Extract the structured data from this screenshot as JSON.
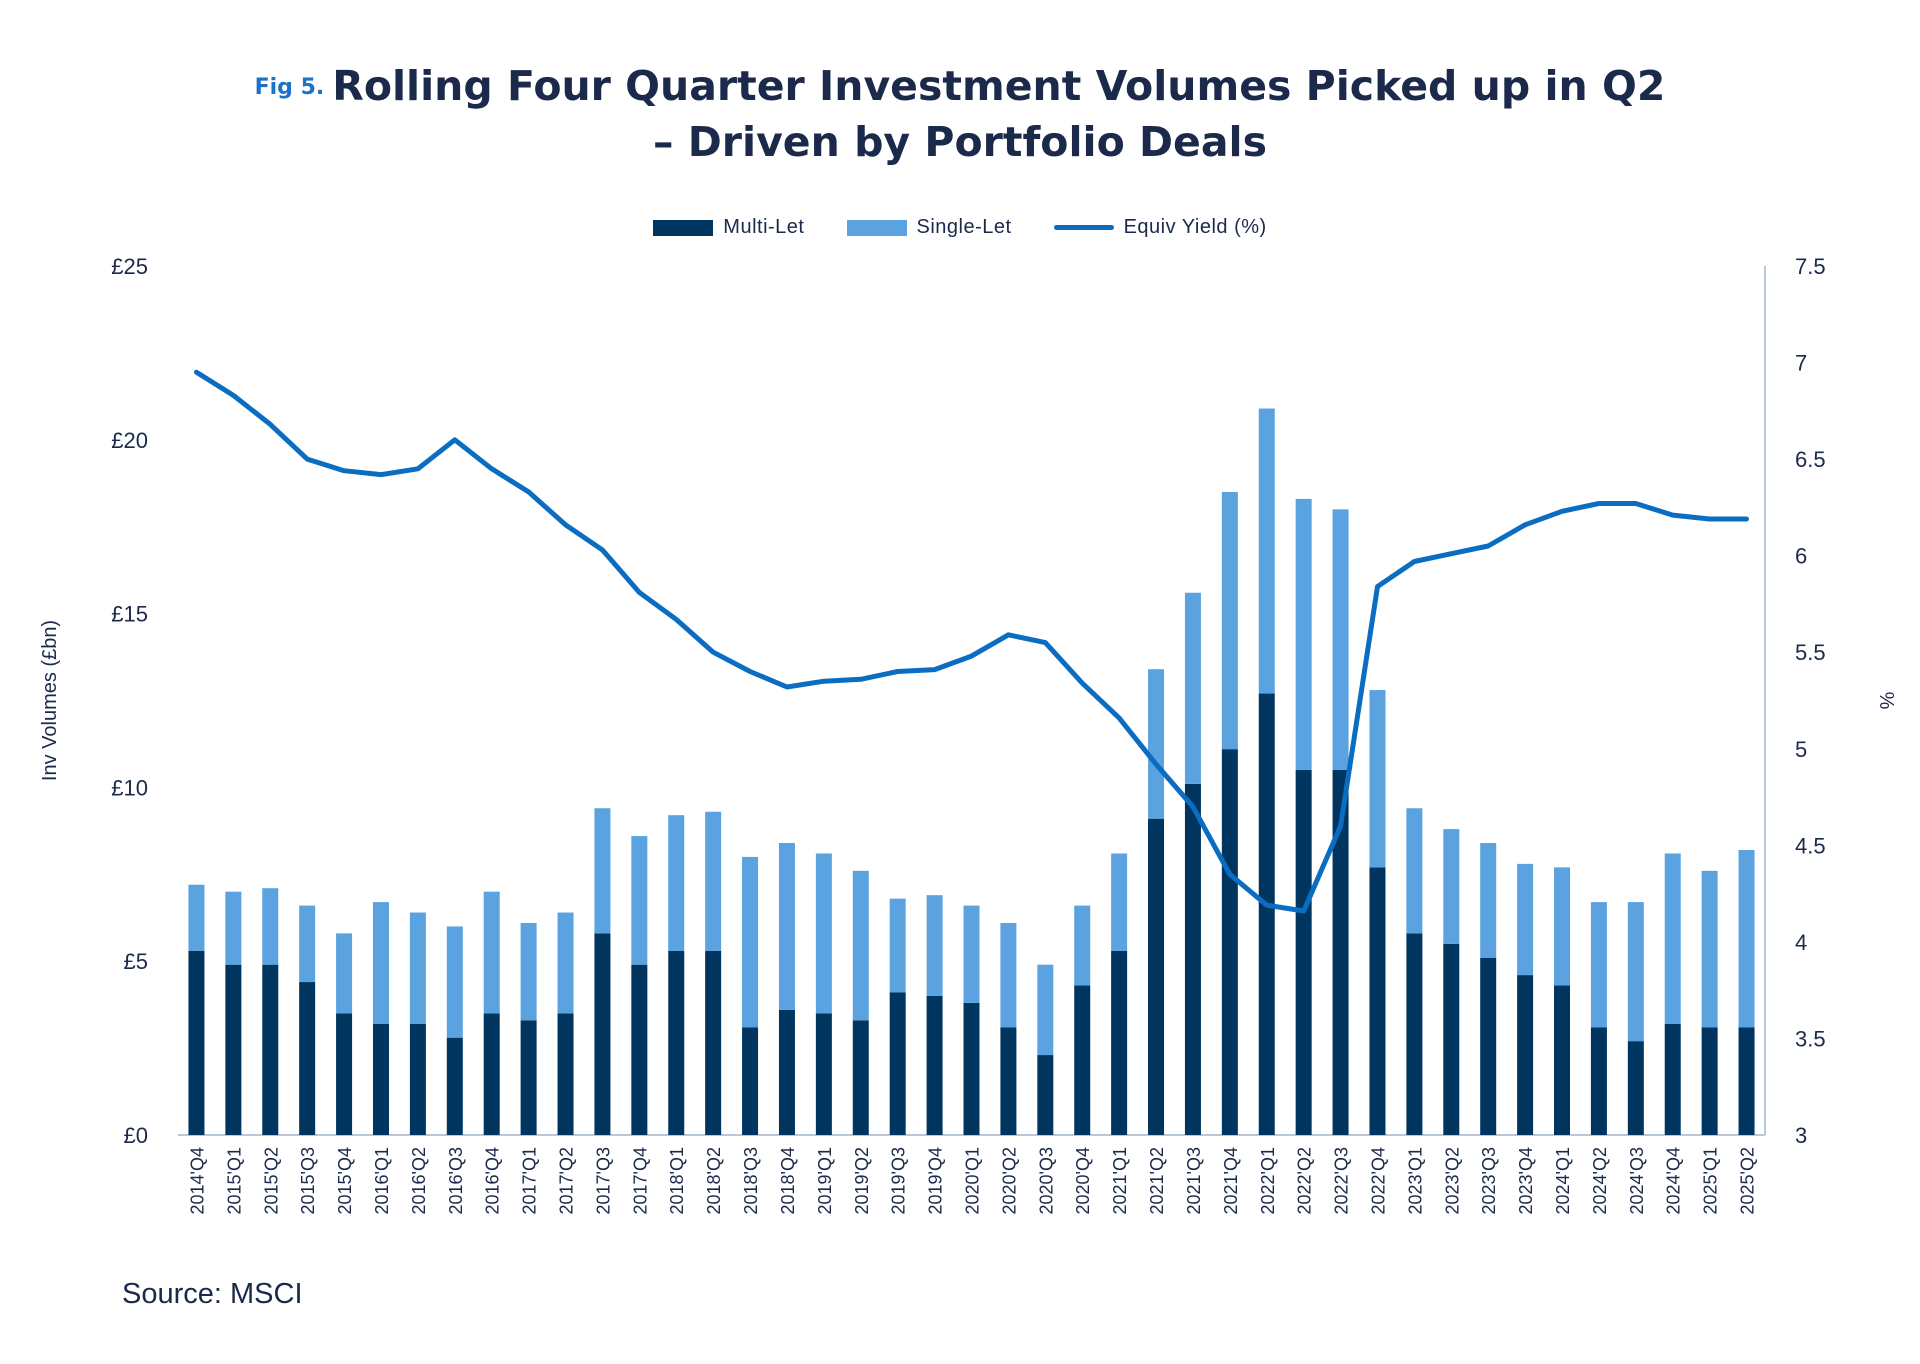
{
  "title": {
    "fig_label": "Fig 5.",
    "line1": "Rolling Four Quarter Investment Volumes Picked up in Q2",
    "line2": "– Driven by Portfolio Deals"
  },
  "source": "Source: MSCI",
  "colors": {
    "multi_let": "#003560",
    "single_let": "#5aa3e0",
    "yield": "#0b6dc2",
    "text": "#1b2a4a",
    "axis": "#b8c7d9"
  },
  "chart_data": {
    "type": "bar",
    "stacked": true,
    "title": "Rolling Four Quarter Investment Volumes Picked up in Q2 – Driven by Portfolio Deals",
    "ylabel": "Inv Volumes (£bn)",
    "y2label": "%",
    "ylim": [
      0,
      25
    ],
    "y2lim": [
      3,
      7.5
    ],
    "yticks": [
      "£0",
      "£5",
      "£10",
      "£15",
      "£20",
      "£25"
    ],
    "y2ticks": [
      "3",
      "3.5",
      "4",
      "4.5",
      "5",
      "5.5",
      "6",
      "6.5",
      "7",
      "7.5"
    ],
    "legend_position": "top-center",
    "categories": [
      "2014'Q4",
      "2015'Q1",
      "2015'Q2",
      "2015'Q3",
      "2015'Q4",
      "2016'Q1",
      "2016'Q2",
      "2016'Q3",
      "2016'Q4",
      "2017'Q1",
      "2017'Q2",
      "2017'Q3",
      "2017'Q4",
      "2018'Q1",
      "2018'Q2",
      "2018'Q3",
      "2018'Q4",
      "2019'Q1",
      "2019'Q2",
      "2019'Q3",
      "2019'Q4",
      "2020'Q1",
      "2020'Q2",
      "2020'Q3",
      "2020'Q4",
      "2021'Q1",
      "2021'Q2",
      "2021'Q3",
      "2021'Q4",
      "2022'Q1",
      "2022'Q2",
      "2022'Q3",
      "2022'Q4",
      "2023'Q1",
      "2023'Q2",
      "2023'Q3",
      "2023'Q4",
      "2024'Q1",
      "2024'Q2",
      "2024'Q3",
      "2024'Q4",
      "2025'Q1",
      "2025'Q2"
    ],
    "series": [
      {
        "name": "Multi-Let",
        "type": "bar",
        "values": [
          5.3,
          4.9,
          4.9,
          4.4,
          3.5,
          3.2,
          3.2,
          2.8,
          3.5,
          3.3,
          3.5,
          5.8,
          4.9,
          5.3,
          5.3,
          3.1,
          3.6,
          3.5,
          3.3,
          4.1,
          4.0,
          3.8,
          3.1,
          2.3,
          4.3,
          5.3,
          9.1,
          10.1,
          11.1,
          12.7,
          10.5,
          10.5,
          7.7,
          5.8,
          5.5,
          5.1,
          4.6,
          4.3,
          3.1,
          2.7,
          3.2,
          3.1,
          3.1
        ]
      },
      {
        "name": "Single-Let",
        "type": "bar",
        "values": [
          1.9,
          2.1,
          2.2,
          2.2,
          2.3,
          3.5,
          3.2,
          3.2,
          3.5,
          2.8,
          2.9,
          3.6,
          3.7,
          3.9,
          4.0,
          4.9,
          4.8,
          4.6,
          4.3,
          2.7,
          2.9,
          2.8,
          3.0,
          2.6,
          2.3,
          2.8,
          4.3,
          5.5,
          7.4,
          8.2,
          7.8,
          7.5,
          5.1,
          3.6,
          3.3,
          3.3,
          3.2,
          3.4,
          3.6,
          4.0,
          4.9,
          4.5,
          5.1
        ]
      },
      {
        "name": "Equiv Yield (%)",
        "type": "line",
        "axis": "right",
        "values": [
          6.95,
          6.83,
          6.68,
          6.5,
          6.44,
          6.42,
          6.45,
          6.6,
          6.45,
          6.33,
          6.16,
          6.03,
          5.81,
          5.67,
          5.5,
          5.4,
          5.32,
          5.35,
          5.36,
          5.4,
          5.41,
          5.48,
          5.59,
          5.55,
          5.34,
          5.16,
          4.92,
          4.7,
          4.35,
          4.19,
          4.16,
          4.6,
          5.84,
          5.97,
          6.01,
          6.05,
          6.16,
          6.23,
          6.27,
          6.27,
          6.21,
          6.19,
          6.19
        ]
      }
    ]
  }
}
